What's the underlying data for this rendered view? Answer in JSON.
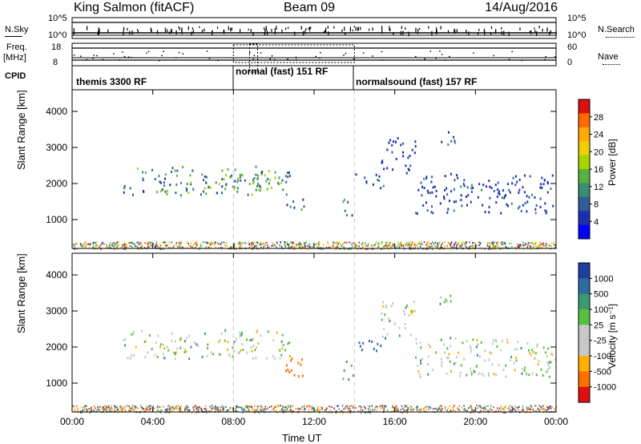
{
  "header": {
    "station": "King Salmon (fitACF)",
    "beam": "Beam 09",
    "date": "14/Aug/2016"
  },
  "status_panel": {
    "nsky_label": "N.Sky",
    "nsky_ticks": [
      "10^5",
      "10^0"
    ],
    "nsearch_label": "N.Search",
    "freq_label": "Freq.",
    "freq_unit": "[MHz]",
    "freq_ticks": [
      "18",
      "8"
    ],
    "nave_label": "Nave",
    "nave_ticks": [
      "60",
      "0"
    ],
    "cpid_label": "CPID"
  },
  "cpid_segments": [
    {
      "label": "themis 3300 RF",
      "start_hr": 0,
      "end_hr": 8
    },
    {
      "label": "normal (fast) 151 RF",
      "start_hr": 8,
      "end_hr": 14
    },
    {
      "label": "normalsound (fast) 157 RF",
      "start_hr": 14,
      "end_hr": 24
    }
  ],
  "power_scale": {
    "title": "Power [dB]",
    "ticks": [
      "28",
      "24",
      "20",
      "16",
      "12",
      "8",
      "4"
    ],
    "colors": [
      "#dd1010",
      "#ff6a00",
      "#ffaa00",
      "#f0d000",
      "#a8d400",
      "#58b040",
      "#3a8e70",
      "#2f5e9a",
      "#1d2fb0",
      "#0000ff"
    ]
  },
  "velocity_scale": {
    "title": "Velocity [m s⁻¹]",
    "ticks": [
      "1000",
      "500",
      "100",
      "25",
      "-25",
      "-100",
      "-500",
      "-1000"
    ],
    "colors": [
      "#1f3fa0",
      "#2f6aa0",
      "#3a9a70",
      "#58c040",
      "#c8c8c8",
      "#c8c8c8",
      "#ffb000",
      "#ff7000",
      "#e01010"
    ]
  },
  "chart_data": [
    {
      "type": "heatmap",
      "title": "Power",
      "xlabel": "Time UT",
      "ylabel": "Slant Range [km]",
      "x_ticks": [
        "00:00",
        "04:00",
        "08:00",
        "12:00",
        "16:00",
        "20:00",
        "00:00"
      ],
      "y_ticks": [
        1000,
        2000,
        3000,
        4000
      ],
      "xlim": [
        0,
        24
      ],
      "ylim": [
        200,
        4600
      ],
      "colorbar": "Power [dB]",
      "clim": [
        0,
        32
      ],
      "regions": [
        {
          "t0": 2.5,
          "t1": 10.8,
          "r0": 1700,
          "r1": 2500,
          "peak_db": 18
        },
        {
          "t0": 6.5,
          "t1": 10.0,
          "r0": 1850,
          "r1": 2200,
          "peak_db": 20
        },
        {
          "t0": 10.5,
          "t1": 11.5,
          "r0": 1200,
          "r1": 1600,
          "peak_db": 14
        },
        {
          "t0": 13.4,
          "t1": 13.9,
          "r0": 1000,
          "r1": 1700,
          "peak_db": 18
        },
        {
          "t0": 14.0,
          "t1": 15.5,
          "r0": 1900,
          "r1": 2300,
          "peak_db": 10
        },
        {
          "t0": 15.3,
          "t1": 17.0,
          "r0": 2300,
          "r1": 3300,
          "peak_db": 8
        },
        {
          "t0": 17.0,
          "t1": 24.0,
          "r0": 1200,
          "r1": 2300,
          "peak_db": 10
        },
        {
          "t0": 18.2,
          "t1": 19.0,
          "r0": 3000,
          "r1": 3500,
          "peak_db": 10
        }
      ]
    },
    {
      "type": "heatmap",
      "title": "Velocity",
      "xlabel": "Time UT",
      "ylabel": "Slant Range [km]",
      "x_ticks": [
        "00:00",
        "04:00",
        "08:00",
        "12:00",
        "16:00",
        "20:00",
        "00:00"
      ],
      "y_ticks": [
        1000,
        2000,
        3000,
        4000
      ],
      "xlim": [
        0,
        24
      ],
      "ylim": [
        200,
        4600
      ],
      "colorbar": "Velocity [m s⁻¹]",
      "clim": [
        -1000,
        1000
      ],
      "regions": [
        {
          "t0": 2.5,
          "t1": 10.8,
          "r0": 1700,
          "r1": 2500,
          "velocity": 0
        },
        {
          "t0": 10.5,
          "t1": 11.5,
          "r0": 1200,
          "r1": 1900,
          "velocity": -500
        },
        {
          "t0": 13.4,
          "t1": 13.9,
          "r0": 1000,
          "r1": 1700,
          "velocity": 100
        },
        {
          "t0": 14.0,
          "t1": 15.5,
          "r0": 1900,
          "r1": 2300,
          "velocity": 500
        },
        {
          "t0": 15.3,
          "t1": 17.0,
          "r0": 2300,
          "r1": 3300,
          "velocity": 0
        },
        {
          "t0": 17.0,
          "t1": 24.0,
          "r0": 1200,
          "r1": 2300,
          "velocity": 0
        },
        {
          "t0": 18.2,
          "t1": 19.0,
          "r0": 3000,
          "r1": 3500,
          "velocity": 0
        }
      ]
    }
  ]
}
